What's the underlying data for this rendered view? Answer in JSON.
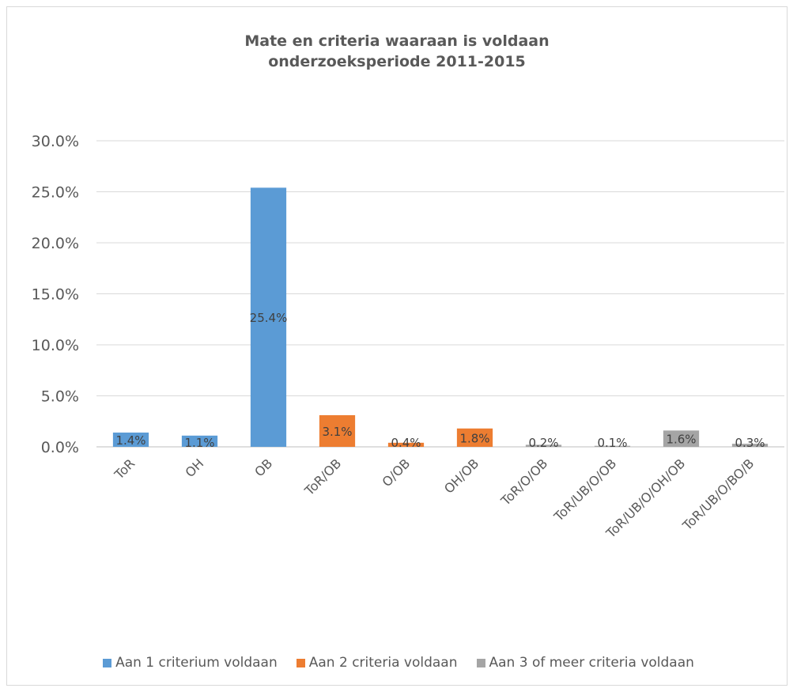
{
  "chart_data": {
    "type": "bar",
    "title": [
      "Mate en criteria waaraan is voldaan",
      "onderzoeksperiode 2011-2015"
    ],
    "categories": [
      "ToR",
      "OH",
      "OB",
      "ToR/OB",
      "O/OB",
      "OH/OB",
      "ToR/O/OB",
      "ToR/UB/O/OB",
      "ToR/UB/O/OH/OB",
      "ToR/UB/O/BO/B"
    ],
    "values": [
      1.4,
      1.1,
      25.4,
      3.1,
      0.4,
      1.8,
      0.2,
      0.1,
      1.6,
      0.3
    ],
    "data_labels": [
      "1.4%",
      "1.1%",
      "25.4%",
      "3.1%",
      "0.4%",
      "1.8%",
      "0.2%",
      "0.1%",
      "1.6%",
      "0.3%"
    ],
    "bar_series": [
      0,
      0,
      0,
      1,
      1,
      1,
      2,
      2,
      2,
      2
    ],
    "series": [
      {
        "name": "Aan 1 criterium voldaan",
        "color": "#5b9bd5"
      },
      {
        "name": "Aan 2 criteria voldaan",
        "color": "#ed7d31"
      },
      {
        "name": "Aan 3 of meer criteria voldaan",
        "color": "#a5a5a5"
      }
    ],
    "y_ticks": [
      "0.0%",
      "5.0%",
      "10.0%",
      "15.0%",
      "20.0%",
      "25.0%",
      "30.0%"
    ],
    "ylim": [
      0,
      30
    ],
    "grid": true,
    "legend_position": "bottom"
  }
}
